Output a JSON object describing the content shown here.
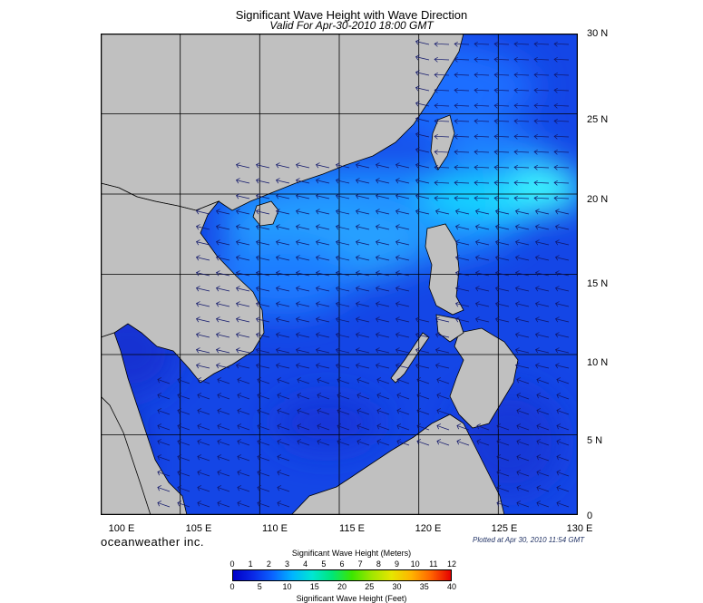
{
  "title": "Significant Wave Height with Wave Direction",
  "subtitle": "Valid For Apr-30-2010 18:00 GMT",
  "brand": "oceanweather inc.",
  "plotted": "Plotted at Apr 30, 2010 11:54 GMT",
  "lat_labels": [
    "30 N",
    "25 N",
    "20 N",
    "15 N",
    "10 N",
    "5 N",
    "0"
  ],
  "lon_labels": [
    "100 E",
    "105 E",
    "110 E",
    "115 E",
    "120 E",
    "125 E",
    "130 E"
  ],
  "colorbar": {
    "title_top": "Significant Wave Height (Meters)",
    "title_bottom": "Significant Wave Height (Feet)",
    "meters": [
      "0",
      "1",
      "2",
      "3",
      "4",
      "5",
      "6",
      "7",
      "8",
      "9",
      "10",
      "11",
      "12"
    ],
    "feet": [
      "0",
      "5",
      "10",
      "15",
      "20",
      "25",
      "30",
      "35",
      "40"
    ],
    "colors": [
      "#0000c8",
      "#0a28e6",
      "#0a64ff",
      "#00b4ff",
      "#00e6d2",
      "#00e678",
      "#3ce600",
      "#a0e600",
      "#e6e600",
      "#ffb400",
      "#ff6400",
      "#e60000"
    ]
  },
  "colors": {
    "land": "#c0c0c0",
    "sea_deep": "#0a1ea0",
    "sea": "#1446e6",
    "sea_light": "#1e8cff",
    "sea_cyan": "#14e6ff",
    "grid": "#000000",
    "arrow": "#10166a"
  }
}
